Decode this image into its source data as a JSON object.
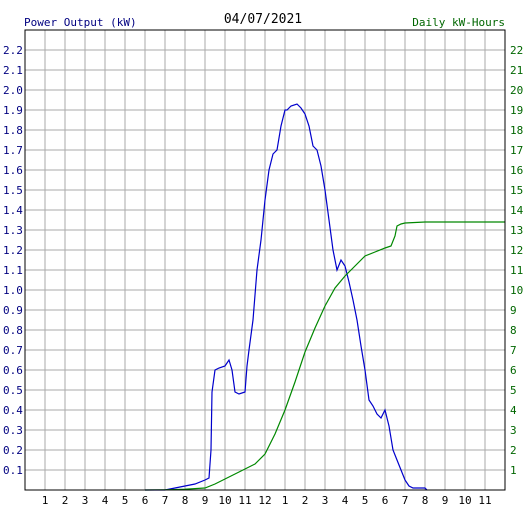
{
  "chart_data": [
    {
      "type": "line",
      "title": "04/07/2021",
      "left_axis_label": "Power Output (kW)",
      "right_axis_label": "Daily kW-Hours",
      "x_tick_labels": [
        "1",
        "2",
        "3",
        "4",
        "5",
        "6",
        "7",
        "8",
        "9",
        "10",
        "11",
        "12",
        "1",
        "2",
        "3",
        "4",
        "5",
        "6",
        "7",
        "8",
        "9",
        "10",
        "11"
      ],
      "x_range_hours": [
        0,
        24
      ],
      "left_ylim": [
        0,
        2.3
      ],
      "left_ticks": [
        "0.1",
        "0.2",
        "0.3",
        "0.4",
        "0.5",
        "0.6",
        "0.7",
        "0.8",
        "0.9",
        "1.0",
        "1.1",
        "1.2",
        "1.3",
        "1.4",
        "1.5",
        "1.6",
        "1.7",
        "1.8",
        "1.9",
        "2.0",
        "2.1",
        "2.2"
      ],
      "right_ylim": [
        0,
        23
      ],
      "right_ticks": [
        "1",
        "2",
        "3",
        "4",
        "5",
        "6",
        "7",
        "8",
        "9",
        "10",
        "11",
        "12",
        "13",
        "14",
        "15",
        "16",
        "17",
        "18",
        "19",
        "20",
        "21",
        "22"
      ],
      "grid": true,
      "colors": {
        "power": "#0000cc",
        "energy": "#008800",
        "grid": "#aaaaaa",
        "left_axis_text": "#000080",
        "right_axis_text": "#006600"
      },
      "series": [
        {
          "name": "Power Output (kW)",
          "axis": "left",
          "x_hours": [
            6.0,
            7.0,
            7.5,
            8.0,
            8.5,
            9.0,
            9.2,
            9.3,
            9.35,
            9.5,
            9.7,
            10.0,
            10.2,
            10.35,
            10.5,
            10.7,
            11.0,
            11.1,
            11.2,
            11.4,
            11.6,
            11.8,
            12.0,
            12.2,
            12.4,
            12.6,
            12.8,
            13.0,
            13.1,
            13.3,
            13.6,
            13.8,
            14.0,
            14.2,
            14.4,
            14.6,
            14.8,
            15.0,
            15.2,
            15.4,
            15.6,
            15.8,
            16.0,
            16.1,
            16.2,
            16.4,
            16.6,
            16.8,
            17.0,
            17.2,
            17.4,
            17.6,
            17.8,
            18.0,
            18.2,
            18.4,
            18.6,
            18.8,
            19.0,
            19.2,
            19.4,
            19.6,
            20.0,
            20.1
          ],
          "values": [
            0.0,
            0.0,
            0.01,
            0.02,
            0.03,
            0.05,
            0.06,
            0.2,
            0.49,
            0.6,
            0.61,
            0.62,
            0.65,
            0.6,
            0.49,
            0.48,
            0.49,
            0.62,
            0.7,
            0.85,
            1.1,
            1.25,
            1.45,
            1.6,
            1.68,
            1.7,
            1.82,
            1.9,
            1.9,
            1.92,
            1.93,
            1.91,
            1.88,
            1.82,
            1.72,
            1.7,
            1.62,
            1.5,
            1.35,
            1.2,
            1.1,
            1.15,
            1.12,
            1.08,
            1.04,
            0.95,
            0.85,
            0.72,
            0.6,
            0.45,
            0.42,
            0.38,
            0.36,
            0.4,
            0.32,
            0.2,
            0.15,
            0.1,
            0.05,
            0.02,
            0.01,
            0.01,
            0.01,
            0.0
          ]
        },
        {
          "name": "Daily kW-Hours",
          "axis": "right",
          "x_hours": [
            6.0,
            7.0,
            8.0,
            9.0,
            9.5,
            10.0,
            10.5,
            11.0,
            11.5,
            12.0,
            12.5,
            13.0,
            13.5,
            14.0,
            14.5,
            15.0,
            15.5,
            16.0,
            16.5,
            17.0,
            17.5,
            18.0,
            18.3,
            18.5,
            18.6,
            18.8,
            19.0,
            20.0,
            21.0,
            22.0,
            23.0,
            24.0
          ],
          "values": [
            0.0,
            0.01,
            0.04,
            0.1,
            0.3,
            0.55,
            0.8,
            1.05,
            1.3,
            1.8,
            2.8,
            4.0,
            5.4,
            6.9,
            8.1,
            9.2,
            10.1,
            10.7,
            11.2,
            11.7,
            11.9,
            12.1,
            12.2,
            12.7,
            13.2,
            13.3,
            13.35,
            13.4,
            13.4,
            13.4,
            13.4,
            13.4
          ]
        }
      ]
    }
  ]
}
